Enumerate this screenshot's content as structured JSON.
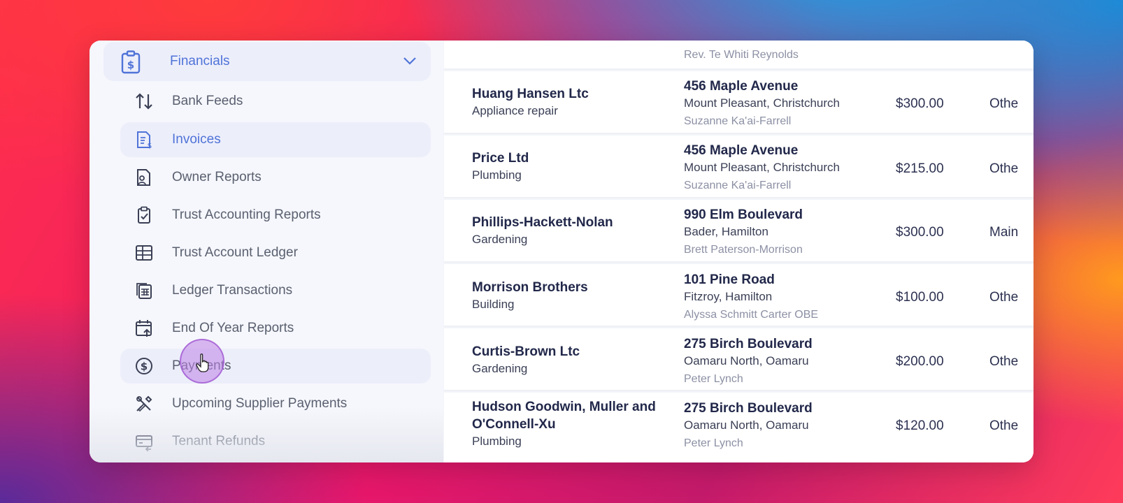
{
  "sidebar": {
    "section": {
      "label": "Financials",
      "icon": "invoice-dollar-clipboard-icon",
      "expanded": true
    },
    "items": [
      {
        "label": "Bank Feeds",
        "icon": "arrows-up-down-icon"
      },
      {
        "label": "Invoices",
        "icon": "receipt-dollar-icon",
        "active": true
      },
      {
        "label": "Owner Reports",
        "icon": "person-report-icon"
      },
      {
        "label": "Trust Accounting Reports",
        "icon": "clipboard-check-icon"
      },
      {
        "label": "Trust Account Ledger",
        "icon": "table-grid-icon"
      },
      {
        "label": "Ledger Transactions",
        "icon": "calculator-icon"
      },
      {
        "label": "End Of Year Reports",
        "icon": "calendar-arrow-icon"
      },
      {
        "label": "Payments",
        "icon": "dollar-circle-icon",
        "hovered": true
      },
      {
        "label": "Upcoming Supplier Payments",
        "icon": "tools-icon"
      },
      {
        "label": "Tenant Refunds",
        "icon": "card-refund-icon"
      }
    ]
  },
  "table": {
    "partial_top": {
      "contact": "Rev. Te Whiti Reynolds"
    },
    "rows": [
      {
        "name": "Huang Hansen Ltc",
        "category": "Appliance repair",
        "street": "456 Maple Avenue",
        "suburb": "Mount Pleasant, Christchurch",
        "contact": "Suzanne Ka'ai-Farrell",
        "amount": "$300.00",
        "type": "Othe"
      },
      {
        "name": "Price Ltd",
        "category": "Plumbing",
        "street": "456 Maple Avenue",
        "suburb": "Mount Pleasant, Christchurch",
        "contact": "Suzanne Ka'ai-Farrell",
        "amount": "$215.00",
        "type": "Othe"
      },
      {
        "name": "Phillips-Hackett-Nolan",
        "category": "Gardening",
        "street": "990 Elm Boulevard",
        "suburb": "Bader, Hamilton",
        "contact": "Brett Paterson-Morrison",
        "amount": "$300.00",
        "type": "Main"
      },
      {
        "name": "Morrison Brothers",
        "category": "Building",
        "street": "101 Pine Road",
        "suburb": "Fitzroy, Hamilton",
        "contact": "Alyssa Schmitt Carter OBE",
        "amount": "$100.00",
        "type": "Othe"
      },
      {
        "name": "Curtis-Brown Ltc",
        "category": "Gardening",
        "street": "275 Birch Boulevard",
        "suburb": "Oamaru North, Oamaru",
        "contact": "Peter Lynch",
        "amount": "$200.00",
        "type": "Othe"
      },
      {
        "name_line1": "Hudson Goodwin, Muller and",
        "name_line2": "O'Connell-Xu",
        "category": "Plumbing",
        "street": "275 Birch Boulevard",
        "suburb": "Oamaru North, Oamaru",
        "contact": "Peter Lynch",
        "amount": "$120.00",
        "type": "Othe"
      }
    ]
  }
}
